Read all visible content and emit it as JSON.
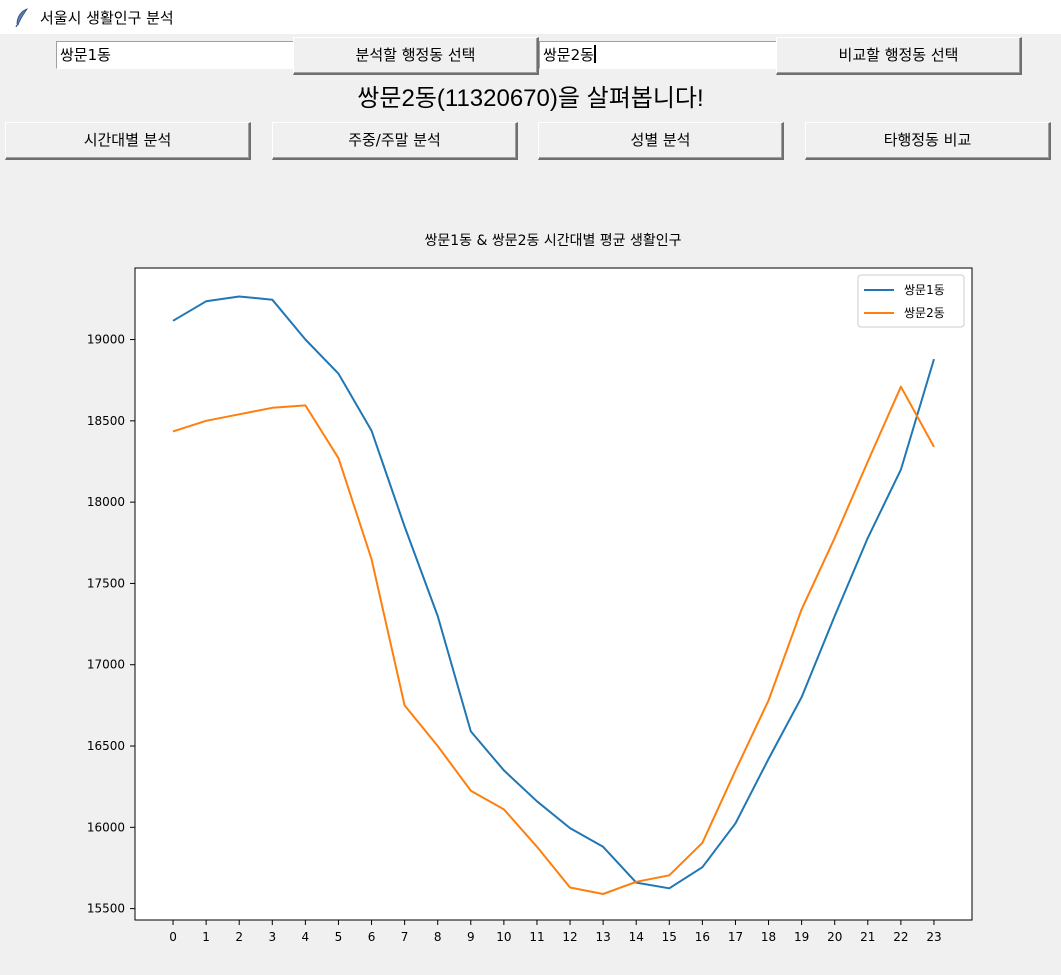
{
  "window": {
    "title": "서울시 생활인구 분석",
    "icon": "feather-icon"
  },
  "controls": {
    "target_input_value": "쌍문1동",
    "target_button_label": "분석할 행정동 선택",
    "compare_input_value": "쌍문2동",
    "compare_button_label": "비교할 행정동 선택"
  },
  "heading": "쌍문2동(11320670)을 살펴봅니다!",
  "analysis_buttons": {
    "hourly": "시간대별 분석",
    "weekday_weekend": "주중/주말 분석",
    "gender": "성별 분석",
    "compare": "타행정동 비교"
  },
  "chart_data": {
    "type": "line",
    "title": "쌍문1동 & 쌍문2동 시간대별 평균 생활인구",
    "xlabel": "",
    "ylabel": "",
    "x": [
      0,
      1,
      2,
      3,
      4,
      5,
      6,
      7,
      8,
      9,
      10,
      11,
      12,
      13,
      14,
      15,
      16,
      17,
      18,
      19,
      20,
      21,
      22,
      23
    ],
    "x_ticks": [
      "0",
      "1",
      "2",
      "3",
      "4",
      "5",
      "6",
      "7",
      "8",
      "9",
      "10",
      "11",
      "12",
      "13",
      "14",
      "15",
      "16",
      "17",
      "18",
      "19",
      "20",
      "21",
      "22",
      "23"
    ],
    "y_ticks": [
      15500,
      16000,
      16500,
      17000,
      17500,
      18000,
      18500,
      19000
    ],
    "ylim": [
      15430,
      19440
    ],
    "xlim": [
      -1.15,
      24.15
    ],
    "grid": false,
    "legend_position": "upper-right",
    "series": [
      {
        "name": "쌍문1동",
        "color": "#1f77b4",
        "values": [
          19115,
          19235,
          19265,
          19245,
          19000,
          18790,
          18440,
          17850,
          17300,
          16590,
          16350,
          16160,
          15995,
          15880,
          15660,
          15625,
          15755,
          16025,
          16420,
          16800,
          17300,
          17780,
          18200,
          18880
        ]
      },
      {
        "name": "쌍문2동",
        "color": "#ff7f0e",
        "values": [
          18435,
          18500,
          18540,
          18580,
          18595,
          18270,
          17650,
          16750,
          16500,
          16225,
          16110,
          15880,
          15630,
          15590,
          15665,
          15705,
          15905,
          16350,
          16780,
          17340,
          17780,
          18250,
          18710,
          18340
        ]
      }
    ]
  }
}
